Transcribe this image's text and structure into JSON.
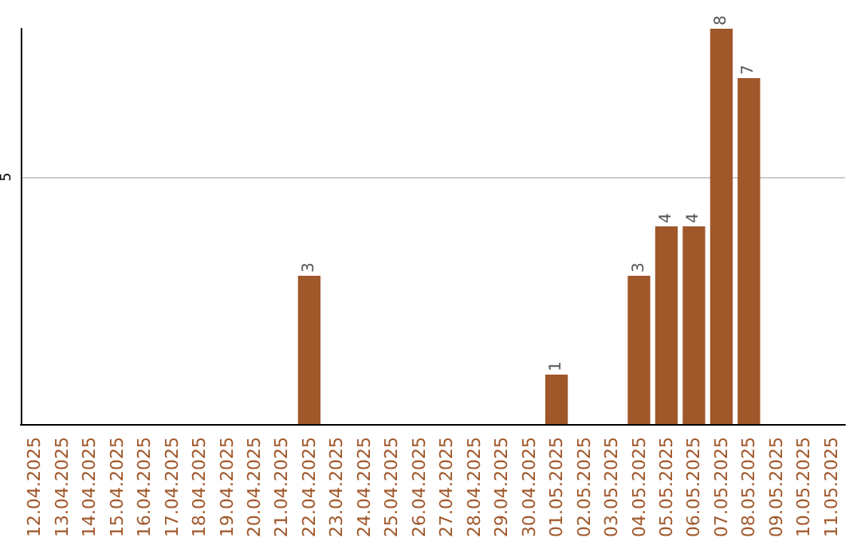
{
  "chart_data": {
    "type": "bar",
    "categories": [
      "12.04.2025",
      "13.04.2025",
      "14.04.2025",
      "15.04.2025",
      "16.04.2025",
      "17.04.2025",
      "18.04.2025",
      "19.04.2025",
      "20.04.2025",
      "21.04.2025",
      "22.04.2025",
      "23.04.2025",
      "24.04.2025",
      "25.04.2025",
      "26.04.2025",
      "27.04.2025",
      "28.04.2025",
      "29.04.2025",
      "30.04.2025",
      "01.05.2025",
      "02.05.2025",
      "03.05.2025",
      "04.05.2025",
      "05.05.2025",
      "06.05.2025",
      "07.05.2025",
      "08.05.2025",
      "09.05.2025",
      "10.05.2025",
      "11.05.2025"
    ],
    "values": [
      0,
      0,
      0,
      0,
      0,
      0,
      0,
      0,
      0,
      0,
      3,
      0,
      0,
      0,
      0,
      0,
      0,
      0,
      0,
      1,
      0,
      0,
      3,
      4,
      4,
      8,
      7,
      0,
      0,
      0
    ],
    "value_labels": [
      null,
      null,
      null,
      null,
      null,
      null,
      null,
      null,
      null,
      null,
      "3",
      null,
      null,
      null,
      null,
      null,
      null,
      null,
      null,
      "1",
      null,
      null,
      "3",
      "4",
      "4",
      "8",
      "7",
      null,
      null,
      null
    ],
    "color": "#a0572a",
    "ylim": [
      0,
      8
    ],
    "yticks": [
      5
    ],
    "grid": true
  }
}
